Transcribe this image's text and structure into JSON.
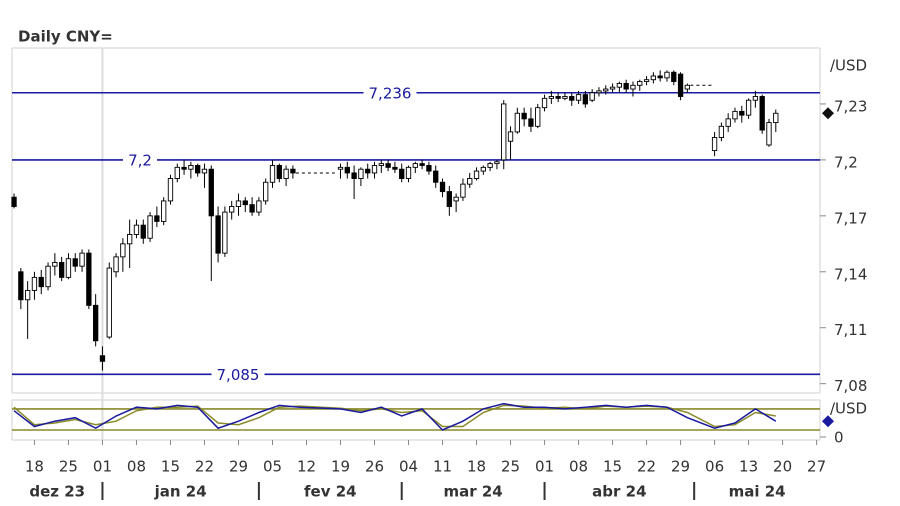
{
  "chart_data": [
    {
      "type": "candlestick",
      "title": "Daily CNY=",
      "y_unit": "/USD",
      "x": [
        0,
        1,
        2,
        3,
        4,
        5,
        6,
        7,
        8,
        9,
        10,
        11,
        12,
        13,
        14,
        15,
        16,
        17,
        18,
        19,
        20,
        21,
        22,
        23,
        24,
        25,
        26,
        27,
        28,
        29,
        30,
        31,
        32,
        33,
        34,
        35,
        36,
        37,
        38,
        39,
        40,
        41,
        48,
        49,
        50,
        51,
        52,
        53,
        54,
        55,
        56,
        57,
        58,
        59,
        60,
        61,
        62,
        63,
        64,
        65,
        66,
        67,
        68,
        69,
        70,
        71,
        72,
        73,
        74,
        75,
        76,
        77,
        78,
        79,
        80,
        81,
        82,
        83,
        84,
        85,
        86,
        87,
        88,
        89,
        90,
        91,
        92,
        93,
        94,
        95,
        96,
        97,
        98,
        99,
        103,
        104,
        105,
        106,
        107,
        108,
        109,
        110,
        111,
        112
      ],
      "open": [
        7.18,
        7.14,
        7.125,
        7.13,
        7.137,
        7.132,
        7.143,
        7.145,
        7.137,
        7.147,
        7.143,
        7.15,
        7.122,
        7.095,
        7.105,
        7.14,
        7.148,
        7.155,
        7.16,
        7.165,
        7.158,
        7.17,
        7.167,
        7.178,
        7.19,
        7.196,
        7.195,
        7.197,
        7.193,
        7.195,
        7.17,
        7.15,
        7.172,
        7.175,
        7.178,
        7.176,
        7.172,
        7.178,
        7.188,
        7.197,
        7.19,
        7.195,
        7.195,
        7.196,
        7.193,
        7.19,
        7.195,
        7.193,
        7.197,
        7.198,
        7.196,
        7.195,
        7.19,
        7.196,
        7.198,
        7.197,
        7.194,
        7.188,
        7.183,
        7.178,
        7.18,
        7.187,
        7.19,
        7.194,
        7.196,
        7.198,
        7.2,
        7.21,
        7.215,
        7.225,
        7.222,
        7.218,
        7.228,
        7.233,
        7.234,
        7.233,
        7.234,
        7.232,
        7.235,
        7.232,
        7.236,
        7.237,
        7.238,
        7.239,
        7.241,
        7.238,
        7.24,
        7.242,
        7.243,
        7.245,
        7.244,
        7.247,
        7.246,
        7.238,
        7.205,
        7.212,
        7.218,
        7.222,
        7.226,
        7.224,
        7.232,
        7.234,
        7.208,
        7.22
      ],
      "high": [
        7.182,
        7.142,
        7.135,
        7.14,
        7.141,
        7.145,
        7.15,
        7.148,
        7.15,
        7.15,
        7.152,
        7.152,
        7.128,
        7.1,
        7.145,
        7.15,
        7.158,
        7.168,
        7.168,
        7.168,
        7.172,
        7.175,
        7.18,
        7.192,
        7.198,
        7.2,
        7.199,
        7.198,
        7.198,
        7.197,
        7.175,
        7.175,
        7.178,
        7.182,
        7.18,
        7.18,
        7.18,
        7.19,
        7.2,
        7.198,
        7.197,
        7.197,
        7.198,
        7.199,
        7.197,
        7.196,
        7.198,
        7.199,
        7.2,
        7.2,
        7.199,
        7.198,
        7.197,
        7.199,
        7.2,
        7.199,
        7.197,
        7.19,
        7.186,
        7.182,
        7.19,
        7.193,
        7.196,
        7.197,
        7.199,
        7.2,
        7.232,
        7.218,
        7.228,
        7.228,
        7.228,
        7.23,
        7.235,
        7.237,
        7.236,
        7.236,
        7.236,
        7.237,
        7.237,
        7.238,
        7.239,
        7.24,
        7.241,
        7.242,
        7.243,
        7.242,
        7.243,
        7.245,
        7.247,
        7.248,
        7.248,
        7.248,
        7.247,
        7.241,
        7.215,
        7.22,
        7.225,
        7.228,
        7.229,
        7.233,
        7.237,
        7.235,
        7.222,
        7.227
      ],
      "low": [
        7.174,
        7.12,
        7.104,
        7.125,
        7.128,
        7.13,
        7.138,
        7.135,
        7.136,
        7.14,
        7.14,
        7.12,
        7.1,
        7.087,
        7.104,
        7.137,
        7.14,
        7.142,
        7.158,
        7.155,
        7.156,
        7.164,
        7.165,
        7.176,
        7.188,
        7.192,
        7.19,
        7.191,
        7.185,
        7.135,
        7.145,
        7.148,
        7.168,
        7.17,
        7.172,
        7.17,
        7.17,
        7.176,
        7.185,
        7.188,
        7.186,
        7.19,
        7.19,
        7.19,
        7.179,
        7.186,
        7.19,
        7.19,
        7.193,
        7.194,
        7.193,
        7.188,
        7.188,
        7.193,
        7.195,
        7.192,
        7.185,
        7.18,
        7.17,
        7.172,
        7.178,
        7.185,
        7.189,
        7.192,
        7.194,
        7.195,
        7.195,
        7.2,
        7.214,
        7.218,
        7.215,
        7.217,
        7.226,
        7.23,
        7.231,
        7.232,
        7.229,
        7.23,
        7.228,
        7.231,
        7.234,
        7.235,
        7.236,
        7.236,
        7.236,
        7.234,
        7.237,
        7.24,
        7.241,
        7.242,
        7.242,
        7.24,
        7.232,
        7.236,
        7.202,
        7.21,
        7.215,
        7.22,
        7.22,
        7.222,
        7.228,
        7.214,
        7.207,
        7.215
      ],
      "close": [
        7.175,
        7.125,
        7.13,
        7.137,
        7.132,
        7.143,
        7.145,
        7.137,
        7.147,
        7.143,
        7.15,
        7.122,
        7.103,
        7.092,
        7.142,
        7.148,
        7.155,
        7.16,
        7.165,
        7.158,
        7.17,
        7.167,
        7.178,
        7.19,
        7.196,
        7.195,
        7.197,
        7.193,
        7.195,
        7.17,
        7.15,
        7.172,
        7.175,
        7.178,
        7.176,
        7.172,
        7.178,
        7.188,
        7.197,
        7.19,
        7.195,
        7.193,
        7.196,
        7.193,
        7.19,
        7.195,
        7.193,
        7.197,
        7.198,
        7.196,
        7.195,
        7.19,
        7.196,
        7.198,
        7.197,
        7.194,
        7.188,
        7.183,
        7.175,
        7.18,
        7.187,
        7.19,
        7.194,
        7.196,
        7.198,
        7.199,
        7.23,
        7.215,
        7.225,
        7.222,
        7.218,
        7.228,
        7.233,
        7.234,
        7.233,
        7.234,
        7.232,
        7.235,
        7.23,
        7.236,
        7.237,
        7.238,
        7.239,
        7.241,
        7.238,
        7.24,
        7.242,
        7.243,
        7.245,
        7.244,
        7.247,
        7.242,
        7.234,
        7.24,
        7.212,
        7.218,
        7.222,
        7.226,
        7.224,
        7.232,
        7.234,
        7.216,
        7.22,
        7.225
      ],
      "up_color": "#ffffff",
      "down_color": "#000000",
      "xlim": [
        -0.3,
        118.5
      ],
      "ylim": [
        7.075,
        7.26
      ],
      "yticks": [
        {
          "value": 7.08,
          "label": "7,08"
        },
        {
          "value": 7.11,
          "label": "7,11"
        },
        {
          "value": 7.14,
          "label": "7,14"
        },
        {
          "value": 7.17,
          "label": "7,17"
        },
        {
          "value": 7.2,
          "label": "7,2"
        },
        {
          "value": 7.23,
          "label": "7,23"
        }
      ],
      "xticks": [
        {
          "value": 3,
          "label": "18"
        },
        {
          "value": 8,
          "label": "25"
        },
        {
          "value": 13,
          "label": "01"
        },
        {
          "value": 18,
          "label": "08"
        },
        {
          "value": 23,
          "label": "15"
        },
        {
          "value": 28,
          "label": "22"
        },
        {
          "value": 33,
          "label": "29"
        },
        {
          "value": 38,
          "label": "05"
        },
        {
          "value": 43,
          "label": "12"
        },
        {
          "value": 48,
          "label": "19"
        },
        {
          "value": 53,
          "label": "26"
        },
        {
          "value": 58,
          "label": "04"
        },
        {
          "value": 63,
          "label": "11"
        },
        {
          "value": 68,
          "label": "18"
        },
        {
          "value": 73,
          "label": "25"
        },
        {
          "value": 78,
          "label": "01"
        },
        {
          "value": 83,
          "label": "08"
        },
        {
          "value": 88,
          "label": "15"
        },
        {
          "value": 93,
          "label": "22"
        },
        {
          "value": 98,
          "label": "29"
        },
        {
          "value": 103,
          "label": "06"
        },
        {
          "value": 108,
          "label": "13"
        },
        {
          "value": 113,
          "label": "20"
        },
        {
          "value": 118,
          "label": "27"
        }
      ],
      "months": [
        "dez 23",
        "jan 24",
        "fev 24",
        "mar 24",
        "abr 24",
        "mai 24"
      ],
      "month_boundaries": [
        13,
        36,
        57,
        78,
        100
      ],
      "levels": [
        {
          "value": 7.236,
          "label": "7,236"
        },
        {
          "value": 7.2,
          "label": "7,2"
        },
        {
          "value": 7.085,
          "label": "7,085"
        }
      ],
      "level_color": "#1a1aa0"
    },
    {
      "type": "line",
      "y_unit": "/USD",
      "series": [
        {
          "color": "#8a8a2a",
          "x": [
            0,
            3,
            6,
            9,
            12,
            15,
            18,
            21,
            24,
            27,
            30,
            33,
            36,
            39,
            42,
            48,
            51,
            54,
            57,
            60,
            63,
            66,
            69,
            72,
            75,
            78,
            81,
            84,
            87,
            90,
            93,
            96,
            99,
            103,
            106,
            109,
            112
          ],
          "values": [
            85,
            35,
            40,
            50,
            35,
            45,
            75,
            85,
            85,
            88,
            40,
            35,
            55,
            85,
            88,
            82,
            75,
            80,
            70,
            75,
            30,
            30,
            70,
            90,
            88,
            82,
            85,
            80,
            88,
            85,
            88,
            85,
            70,
            30,
            35,
            70,
            60
          ]
        },
        {
          "color": "#1a1aa0",
          "x": [
            0,
            3,
            6,
            9,
            12,
            15,
            18,
            21,
            24,
            27,
            30,
            33,
            36,
            39,
            42,
            48,
            51,
            54,
            57,
            60,
            63,
            66,
            69,
            72,
            75,
            78,
            81,
            84,
            87,
            90,
            93,
            96,
            99,
            103,
            106,
            109,
            112
          ],
          "values": [
            75,
            30,
            45,
            55,
            25,
            60,
            85,
            80,
            90,
            85,
            25,
            45,
            70,
            90,
            85,
            80,
            70,
            85,
            60,
            80,
            20,
            45,
            80,
            95,
            85,
            85,
            80,
            85,
            90,
            85,
            90,
            85,
            55,
            25,
            40,
            80,
            45
          ]
        }
      ],
      "ylim": [
        -8.5,
        105.5
      ],
      "yticks": [
        0
      ],
      "levels": [
        20,
        80
      ],
      "level_color": "#8a8a2a"
    }
  ]
}
